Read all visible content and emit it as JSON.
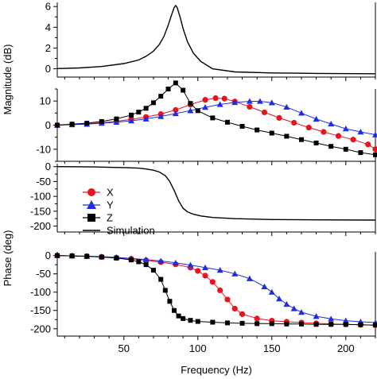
{
  "figure": {
    "magnitude_label": "Magnitude (dB)",
    "phase_label": "Phase (deg)",
    "frequency_label": "Frequency (Hz)"
  },
  "legend": [
    {
      "label": "X",
      "marker": "circle",
      "color": "#e8141b"
    },
    {
      "label": "Y",
      "marker": "triangle",
      "color": "#1f2fe0"
    },
    {
      "label": "Z",
      "marker": "square",
      "color": "#000000"
    },
    {
      "label": "Simulation",
      "marker": "line",
      "color": "#000000"
    }
  ],
  "colors": {
    "X": "#e8141b",
    "Y": "#1f2fe0",
    "Z": "#000000",
    "simulation": "#000000",
    "axes": "#000000"
  },
  "chart_data": [
    {
      "type": "line",
      "panel": "simulated-magnitude",
      "xlabel": "",
      "ylabel": "",
      "xlim": [
        5,
        220
      ],
      "ylim": [
        -0.8,
        6.4
      ],
      "yticks": [
        0,
        2,
        4,
        6
      ],
      "series": [
        {
          "name": "Simulation",
          "x": [
            5,
            20,
            35,
            50,
            60,
            65,
            70,
            74,
            77,
            80,
            82,
            84,
            85,
            86,
            88,
            90,
            93,
            97,
            102,
            110,
            125,
            150,
            180,
            220
          ],
          "y": [
            0.02,
            0.08,
            0.22,
            0.5,
            0.85,
            1.2,
            1.7,
            2.35,
            3.1,
            4.2,
            5.1,
            5.9,
            6.1,
            5.9,
            5.0,
            3.9,
            2.6,
            1.5,
            0.7,
            0.0,
            -0.3,
            -0.4,
            -0.45,
            -0.48
          ]
        }
      ]
    },
    {
      "type": "scatter",
      "panel": "measured-magnitude",
      "xlabel": "",
      "ylabel": "",
      "xlim": [
        5,
        220
      ],
      "ylim": [
        -15,
        15
      ],
      "yticks": [
        -10,
        0,
        10
      ],
      "series": [
        {
          "name": "X",
          "x": [
            5,
            15,
            25,
            35,
            45,
            55,
            65,
            75,
            85,
            95,
            105,
            112,
            118,
            125,
            135,
            145,
            155,
            165,
            175,
            185,
            195,
            205,
            215,
            220
          ],
          "y": [
            0,
            0.3,
            0.6,
            1.0,
            1.6,
            2.4,
            3.4,
            4.6,
            6.3,
            8.5,
            10.5,
            11.2,
            11.0,
            9.8,
            7.6,
            5.3,
            3.0,
            1.0,
            -1.0,
            -2.8,
            -4.5,
            -6.0,
            -8.0,
            -10.0
          ]
        },
        {
          "name": "Y",
          "x": [
            5,
            15,
            25,
            35,
            45,
            55,
            65,
            75,
            85,
            95,
            105,
            115,
            125,
            135,
            142,
            150,
            160,
            170,
            180,
            190,
            200,
            210,
            220
          ],
          "y": [
            0,
            0.2,
            0.4,
            0.8,
            1.2,
            1.8,
            2.6,
            3.6,
            4.8,
            6.0,
            7.4,
            8.6,
            9.4,
            9.9,
            9.9,
            9.3,
            7.5,
            5.0,
            2.5,
            0.5,
            -1.5,
            -2.8,
            -4.0
          ]
        },
        {
          "name": "Z",
          "x": [
            5,
            15,
            25,
            35,
            45,
            55,
            60,
            65,
            70,
            75,
            80,
            85,
            90,
            95,
            100,
            110,
            120,
            130,
            140,
            150,
            160,
            170,
            180,
            190,
            200,
            210,
            220
          ],
          "y": [
            0,
            0.4,
            0.8,
            1.5,
            2.6,
            4.2,
            5.4,
            7.0,
            9.3,
            12.0,
            15.0,
            17.5,
            14.5,
            9.0,
            6.0,
            3.0,
            1.2,
            -0.5,
            -2.0,
            -3.3,
            -4.6,
            -6.0,
            -7.4,
            -8.8,
            -10.0,
            -11.4,
            -12.3
          ]
        }
      ]
    },
    {
      "type": "line",
      "panel": "simulated-phase",
      "xlabel": "",
      "ylabel": "",
      "xlim": [
        5,
        220
      ],
      "ylim": [
        -220,
        10
      ],
      "yticks": [
        -200,
        -150,
        -100,
        -50,
        0
      ],
      "series": [
        {
          "name": "Simulation",
          "x": [
            5,
            30,
            50,
            60,
            65,
            70,
            74,
            78,
            81,
            84,
            87,
            90,
            93,
            97,
            102,
            110,
            125,
            150,
            180,
            220
          ],
          "y": [
            0,
            -1,
            -3,
            -5,
            -8,
            -12,
            -18,
            -30,
            -50,
            -80,
            -115,
            -140,
            -152,
            -160,
            -166,
            -171,
            -175,
            -178,
            -179,
            -180
          ]
        }
      ]
    },
    {
      "type": "scatter",
      "panel": "measured-phase",
      "xlabel": "Frequency (Hz)",
      "ylabel": "",
      "xlim": [
        5,
        220
      ],
      "ylim": [
        -220,
        10
      ],
      "xticks": [
        50,
        100,
        150,
        200
      ],
      "yticks": [
        -200,
        -150,
        -100,
        -50,
        0
      ],
      "series": [
        {
          "name": "X",
          "x": [
            5,
            15,
            25,
            35,
            45,
            55,
            65,
            75,
            85,
            95,
            100,
            105,
            110,
            115,
            120,
            125,
            130,
            140,
            150,
            160,
            170,
            180,
            190,
            200,
            210,
            220
          ],
          "y": [
            0,
            -1,
            -2,
            -4,
            -6,
            -9,
            -13,
            -18,
            -24,
            -33,
            -42,
            -55,
            -72,
            -95,
            -120,
            -145,
            -160,
            -172,
            -178,
            -181,
            -183,
            -185,
            -187,
            -188,
            -189,
            -190
          ]
        },
        {
          "name": "Y",
          "x": [
            5,
            15,
            25,
            35,
            45,
            55,
            65,
            75,
            85,
            95,
            105,
            115,
            125,
            135,
            145,
            150,
            155,
            160,
            165,
            170,
            180,
            190,
            200,
            210,
            220
          ],
          "y": [
            0,
            -1,
            -2,
            -3,
            -5,
            -8,
            -11,
            -15,
            -20,
            -26,
            -33,
            -40,
            -50,
            -63,
            -85,
            -100,
            -118,
            -133,
            -145,
            -155,
            -166,
            -173,
            -178,
            -181,
            -183
          ]
        },
        {
          "name": "Z",
          "x": [
            5,
            15,
            25,
            35,
            45,
            55,
            60,
            65,
            70,
            75,
            78,
            81,
            84,
            87,
            90,
            95,
            100,
            110,
            120,
            130,
            140,
            150,
            160,
            170,
            180,
            190,
            200,
            210,
            220
          ],
          "y": [
            0,
            -1,
            -2,
            -4,
            -7,
            -12,
            -17,
            -25,
            -40,
            -65,
            -95,
            -125,
            -150,
            -165,
            -172,
            -177,
            -180,
            -182,
            -184,
            -185,
            -186,
            -186,
            -187,
            -187,
            -188,
            -188,
            -188,
            -189,
            -190
          ]
        }
      ]
    }
  ]
}
